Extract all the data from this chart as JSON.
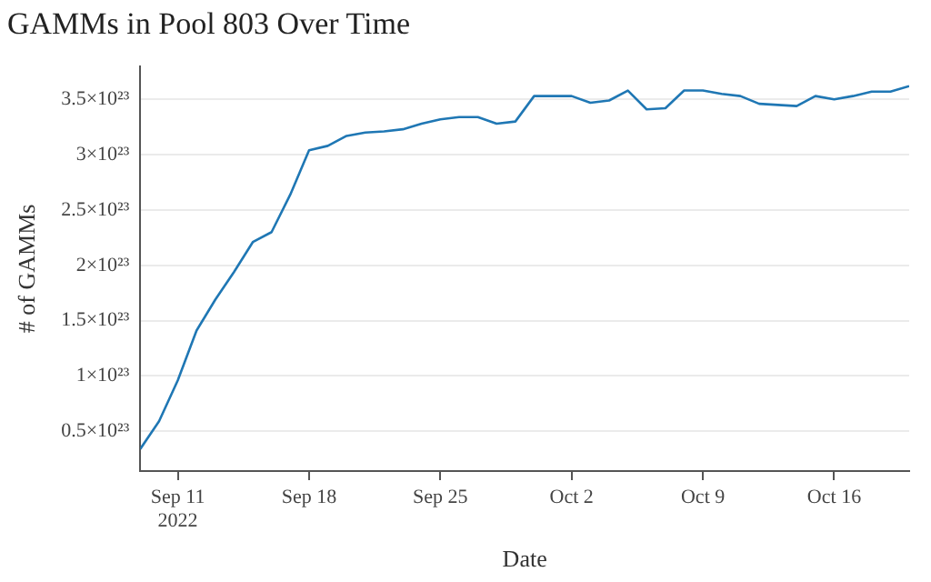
{
  "chart_data": {
    "type": "line",
    "title": "GAMMs in Pool 803 Over Time",
    "xlabel": "Date",
    "ylabel": "# of GAMMs",
    "x": [
      "2022-09-09",
      "2022-09-10",
      "2022-09-11",
      "2022-09-12",
      "2022-09-13",
      "2022-09-14",
      "2022-09-15",
      "2022-09-16",
      "2022-09-17",
      "2022-09-18",
      "2022-09-19",
      "2022-09-20",
      "2022-09-21",
      "2022-09-22",
      "2022-09-23",
      "2022-09-24",
      "2022-09-25",
      "2022-09-26",
      "2022-09-27",
      "2022-09-28",
      "2022-09-29",
      "2022-09-30",
      "2022-10-01",
      "2022-10-02",
      "2022-10-03",
      "2022-10-04",
      "2022-10-05",
      "2022-10-06",
      "2022-10-07",
      "2022-10-08",
      "2022-10-09",
      "2022-10-10",
      "2022-10-11",
      "2022-10-12",
      "2022-10-13",
      "2022-10-14",
      "2022-10-15",
      "2022-10-16",
      "2022-10-17",
      "2022-10-18",
      "2022-10-19",
      "2022-10-20"
    ],
    "series": [
      {
        "color": "#1f77b4",
        "values": [
          3.4e+22,
          5.9e+22,
          9.6e+22,
          1.41e+23,
          1.69e+23,
          1.94e+23,
          2.21e+23,
          2.3e+23,
          2.64e+23,
          3.04e+23,
          3.08e+23,
          3.17e+23,
          3.2e+23,
          3.21e+23,
          3.23e+23,
          3.28e+23,
          3.32e+23,
          3.34e+23,
          3.34e+23,
          3.28e+23,
          3.3e+23,
          3.53e+23,
          3.53e+23,
          3.53e+23,
          3.47e+23,
          3.49e+23,
          3.58e+23,
          3.41e+23,
          3.42e+23,
          3.58e+23,
          3.58e+23,
          3.55e+23,
          3.53e+23,
          3.46e+23,
          3.45e+23,
          3.44e+23,
          3.53e+23,
          3.5e+23,
          3.53e+23,
          3.57e+23,
          3.57e+23,
          3.62e+23
        ]
      }
    ],
    "xlim": [
      "2022-09-09",
      "2022-10-20"
    ],
    "xticks": [
      {
        "value": "2022-09-11",
        "label": "Sep 11\n2022"
      },
      {
        "value": "2022-09-18",
        "label": "Sep 18"
      },
      {
        "value": "2022-09-25",
        "label": "Sep 25"
      },
      {
        "value": "2022-10-02",
        "label": "Oct 2"
      },
      {
        "value": "2022-10-09",
        "label": "Oct 9"
      },
      {
        "value": "2022-10-16",
        "label": "Oct 16"
      }
    ],
    "ylim": [
      1.4e+22,
      3.8e+23
    ],
    "yticks": [
      {
        "value": 5e+22,
        "label": "0.5×10²³"
      },
      {
        "value": 1e+23,
        "label": "1×10²³"
      },
      {
        "value": 1.5e+23,
        "label": "1.5×10²³"
      },
      {
        "value": 2e+23,
        "label": "2×10²³"
      },
      {
        "value": 2.5e+23,
        "label": "2.5×10²³"
      },
      {
        "value": 3e+23,
        "label": "3×10²³"
      },
      {
        "value": 3.5e+23,
        "label": "3.5×10²³"
      }
    ],
    "grid": "y",
    "marker": "none",
    "line_style": "solid",
    "legend": false
  }
}
